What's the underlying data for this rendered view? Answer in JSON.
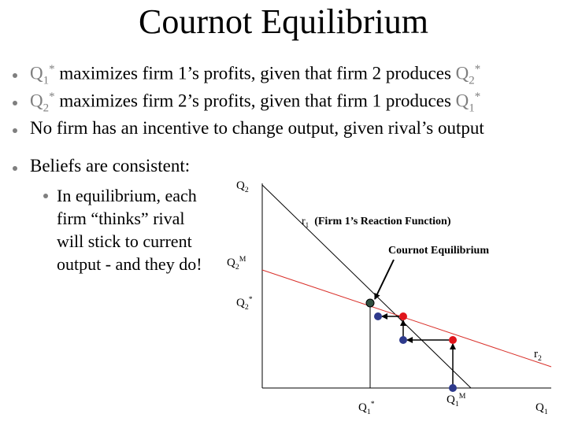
{
  "title": "Cournot Equilibrium",
  "bullets": [
    {
      "q_a": "Q",
      "q_a_sub": "1",
      "q_a_sup": "*",
      "text": " maximizes firm 1’s profits, given that firm 2 produces ",
      "q_b": "Q",
      "q_b_sub": "2",
      "q_b_sup": "*"
    },
    {
      "q_a": "Q",
      "q_a_sub": "2",
      "q_a_sup": "*",
      "text": " maximizes firm 2’s profits, given that firm 1 produces ",
      "q_b": "Q",
      "q_b_sub": "1",
      "q_b_sup": "*"
    },
    {
      "text": "No firm has an incentive to change output, given rival’s output"
    },
    {
      "text": "Beliefs are consistent:"
    }
  ],
  "sub_bullet": [
    "In equilibrium, each",
    "firm “thinks” rival",
    "will stick to current",
    "output - and they do!"
  ],
  "diagram": {
    "y_axis": {
      "q": "Q",
      "sub": "2"
    },
    "x_axis": {
      "q": "Q",
      "sub": "1"
    },
    "r1": {
      "r": "r",
      "sub": "1",
      "text": "(Firm 1’s Reaction Function)"
    },
    "r2": {
      "r": "r",
      "sub": "2"
    },
    "q2m": {
      "q": "Q",
      "sub": "2",
      "sup": "M"
    },
    "q2star": {
      "q": "Q",
      "sub": "2",
      "sup": "*"
    },
    "q1star": {
      "q": "Q",
      "sub": "1",
      "sup": "*"
    },
    "q1m": {
      "q": "Q",
      "sub": "1",
      "sup": "M"
    },
    "equilibrium": "Cournot Equilibrium"
  }
}
